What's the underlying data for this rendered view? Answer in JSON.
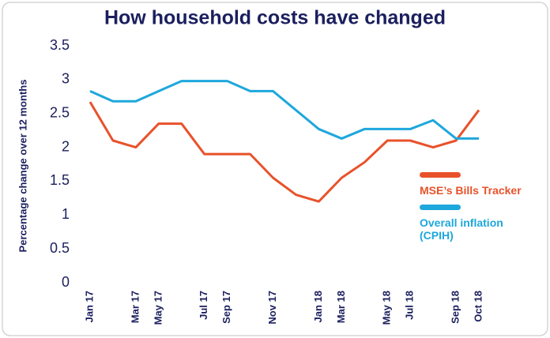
{
  "chart_data": {
    "type": "line",
    "title": "How household costs have changed",
    "y_label": "Percentage change over 12 months",
    "categories": [
      "Jan 17",
      null,
      "Mar 17",
      "May 17",
      null,
      "Jul 17",
      "Sep 17",
      null,
      "Nov 17",
      null,
      "Jan 18",
      "Mar 18",
      null,
      "May 18",
      "Jul 18",
      null,
      "Sep 18",
      "Oct 18"
    ],
    "series": [
      {
        "name": "MSE’s Bills Tracker",
        "color": "#e8522a",
        "values": [
          2.67,
          2.1,
          2.0,
          2.35,
          2.35,
          1.9,
          1.9,
          1.9,
          1.55,
          1.3,
          1.2,
          1.55,
          1.78,
          2.1,
          2.1,
          2.0,
          2.1,
          2.55
        ]
      },
      {
        "name": "Overall inflation (CPIH)",
        "color": "#1ea7dc",
        "values": [
          2.83,
          2.68,
          2.68,
          2.83,
          2.98,
          2.98,
          2.98,
          2.83,
          2.83,
          2.55,
          2.27,
          2.13,
          2.27,
          2.27,
          2.27,
          2.4,
          2.13,
          2.13
        ]
      }
    ],
    "ylim": [
      0,
      3.5
    ],
    "yticks": [
      0,
      0.5,
      1,
      1.5,
      2,
      2.5,
      3,
      3.5
    ],
    "grid": false,
    "legend": "right"
  }
}
